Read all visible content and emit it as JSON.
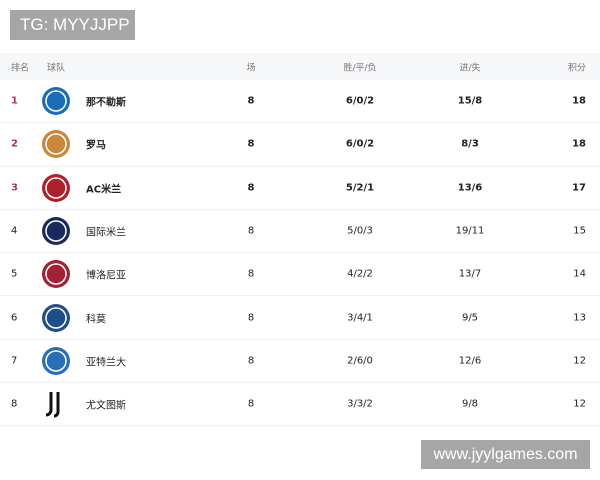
{
  "watermark_top": "TG: MYYJJPP",
  "watermark_bottom": "www.jyylgames.com",
  "headers": {
    "rank": "排名",
    "team": "球队",
    "played": "场",
    "wdl": "胜/平/负",
    "goals": "进/失",
    "points": "积分"
  },
  "rows": [
    {
      "rank": "1",
      "team": "那不勒斯",
      "played": "8",
      "wdl": "6/0/2",
      "goals": "15/8",
      "points": "18",
      "logo": "napoli-crest-icon",
      "color": "#1b6db8"
    },
    {
      "rank": "2",
      "team": "罗马",
      "played": "8",
      "wdl": "6/0/2",
      "goals": "8/3",
      "points": "18",
      "logo": "roma-crest-icon",
      "color": "#c8873a"
    },
    {
      "rank": "3",
      "team": "AC米兰",
      "played": "8",
      "wdl": "5/2/1",
      "goals": "13/6",
      "points": "17",
      "logo": "milan-crest-icon",
      "color": "#b0202a"
    },
    {
      "rank": "4",
      "team": "国际米兰",
      "played": "8",
      "wdl": "5/0/3",
      "goals": "19/11",
      "points": "15",
      "logo": "inter-crest-icon",
      "color": "#1b2a5e"
    },
    {
      "rank": "5",
      "team": "博洛尼亚",
      "played": "8",
      "wdl": "4/2/2",
      "goals": "13/7",
      "points": "14",
      "logo": "bologna-crest-icon",
      "color": "#a32035"
    },
    {
      "rank": "6",
      "team": "科莫",
      "played": "8",
      "wdl": "3/4/1",
      "goals": "9/5",
      "points": "13",
      "logo": "como-crest-icon",
      "color": "#1f4f8a"
    },
    {
      "rank": "7",
      "team": "亚特兰大",
      "played": "8",
      "wdl": "2/6/0",
      "goals": "12/6",
      "points": "12",
      "logo": "atalanta-crest-icon",
      "color": "#2a6fb5"
    },
    {
      "rank": "8",
      "team": "尤文图斯",
      "played": "8",
      "wdl": "3/3/2",
      "goals": "9/8",
      "points": "12",
      "logo": "juventus-crest-icon",
      "color": "#111111"
    }
  ]
}
